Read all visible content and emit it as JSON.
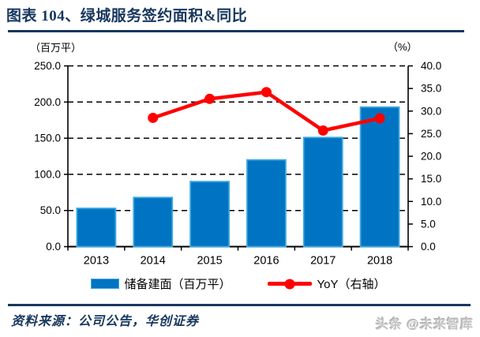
{
  "figure": {
    "title": "图表 104、绿城服务签约面积&同比",
    "source_note": "资料来源：公司公告，华创证券",
    "watermark": "头条 @未来智库"
  },
  "legend": {
    "bar_label": "储备建面（百万平）",
    "line_label": "YoY（右轴）"
  },
  "colors": {
    "bar_fill": "#0074C2",
    "bar_border": "#3FA9E1",
    "line": "#FF0000",
    "rule": "#17375E",
    "title_text": "#17375E",
    "axis_text": "#000000",
    "watermark_text": "#C6C6C6"
  },
  "chart_data": {
    "type": "bar+line",
    "title": "绿城服务签约面积&同比",
    "categories": [
      "2013",
      "2014",
      "2015",
      "2016",
      "2017",
      "2018"
    ],
    "series": [
      {
        "name": "储备建面（百万平）",
        "type": "bar",
        "axis": "left",
        "values": [
          53,
          68,
          90,
          120,
          151,
          193
        ]
      },
      {
        "name": "YoY（右轴）",
        "type": "line",
        "axis": "right",
        "values": [
          null,
          28.5,
          32.7,
          34.2,
          25.7,
          28.4
        ]
      }
    ],
    "left_axis": {
      "unit": "（百万平）",
      "min": 0,
      "max": 250,
      "step": 50,
      "decimals": 1
    },
    "right_axis": {
      "unit": "（%）",
      "min": 0,
      "max": 40,
      "step": 5,
      "decimals": 1
    },
    "grid": "horizontal-dashed",
    "legend_position": "bottom"
  }
}
